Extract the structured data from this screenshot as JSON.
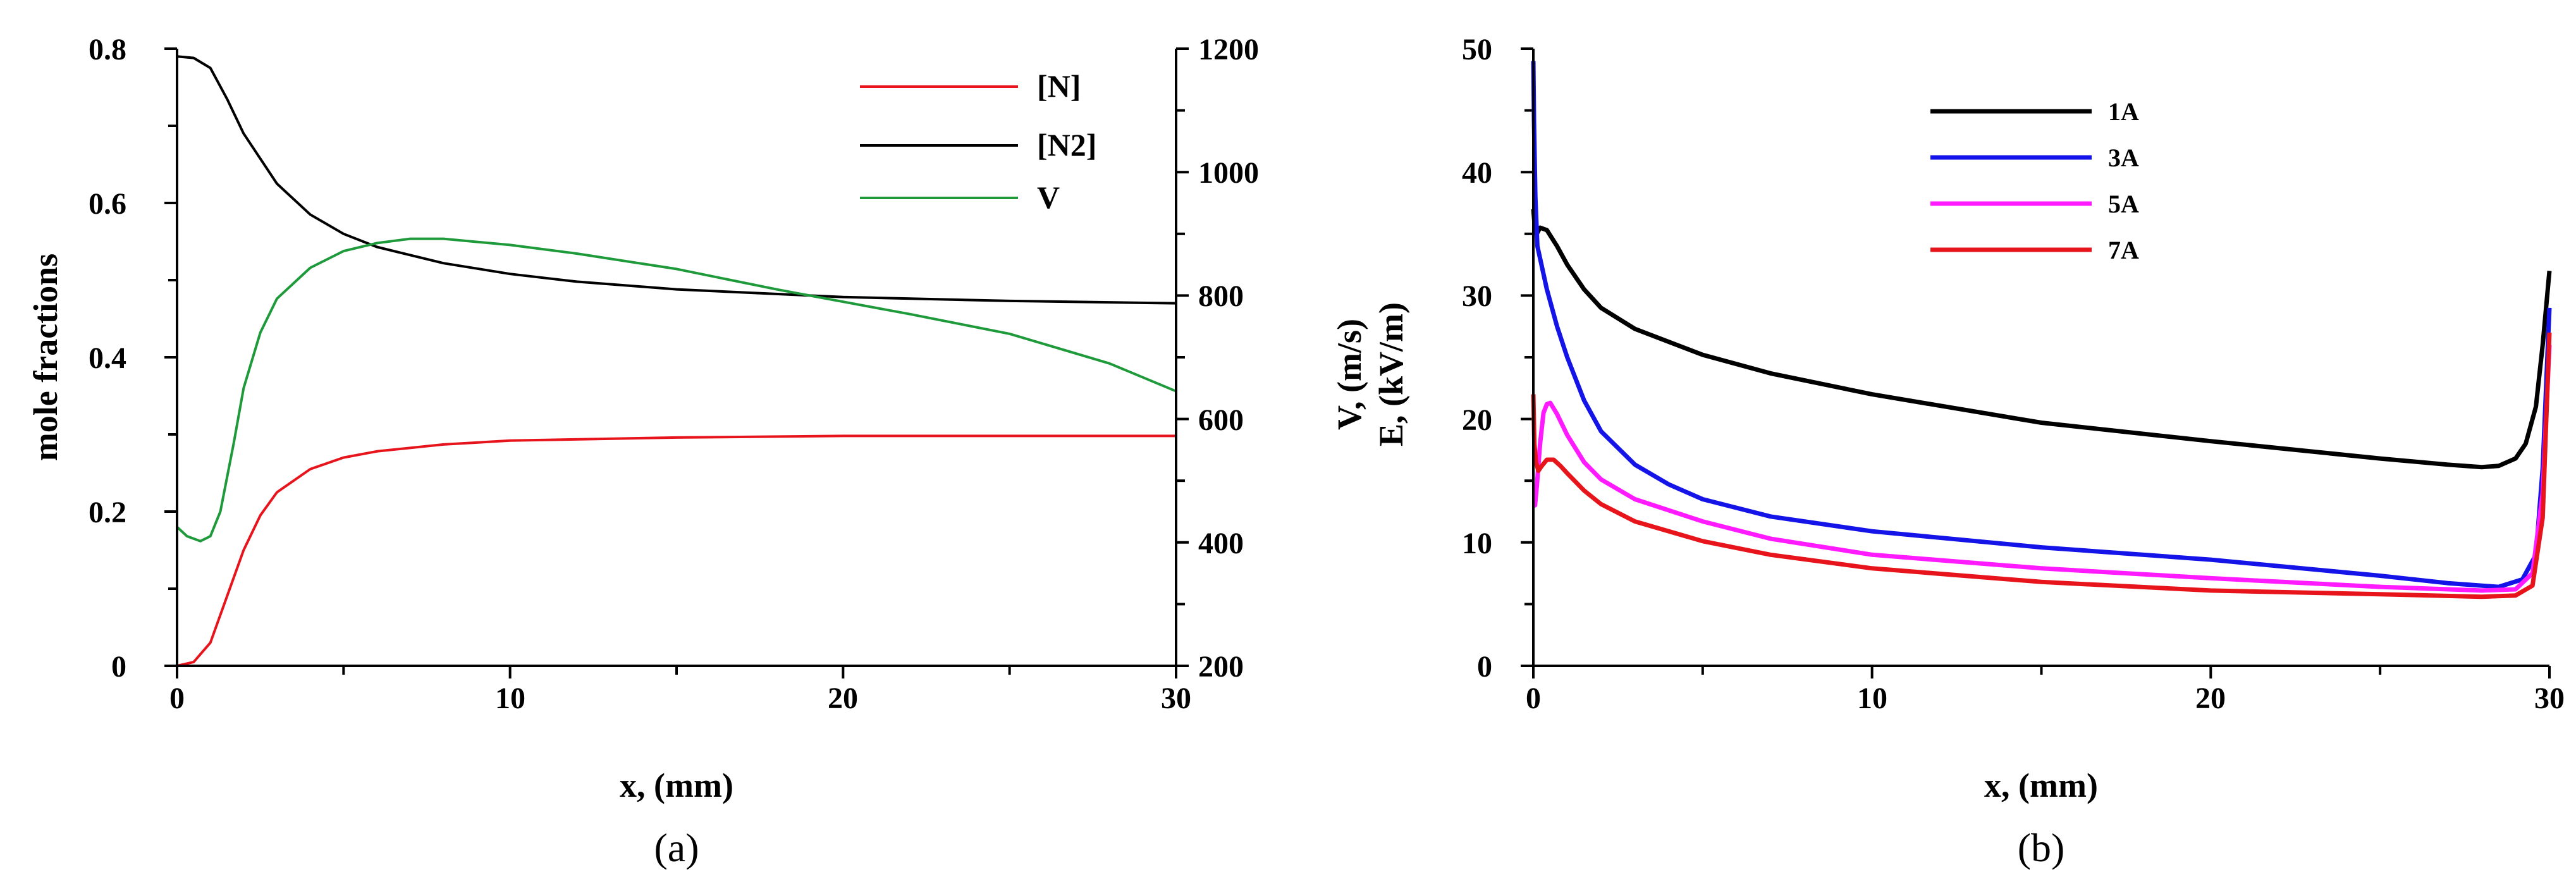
{
  "chart_data": [
    {
      "panel_label": "(a)",
      "type": "line",
      "xlabel": "x, (mm)",
      "ylabel": "mole fractions",
      "xlim": [
        0,
        30
      ],
      "ylim": [
        0,
        0.8
      ],
      "y2lim": [
        200,
        1200
      ],
      "x_ticks": [
        "0",
        "10",
        "20",
        "30"
      ],
      "y_ticks": [
        "0",
        "0.2",
        "0.4",
        "0.6",
        "0.8"
      ],
      "y2_ticks": [
        "200",
        "400",
        "600",
        "800",
        "1000",
        "1200"
      ],
      "legend_position": "top-right",
      "series": [
        {
          "name": "[N]",
          "axis": "left",
          "color": "#e8141c",
          "x": [
            0,
            0.5,
            1,
            1.5,
            2,
            2.5,
            3,
            4,
            5,
            6,
            8,
            10,
            15,
            20,
            25,
            30
          ],
          "y": [
            0,
            0.005,
            0.03,
            0.09,
            0.15,
            0.195,
            0.225,
            0.255,
            0.27,
            0.278,
            0.287,
            0.292,
            0.296,
            0.298,
            0.298,
            0.298
          ]
        },
        {
          "name": "[N2]",
          "axis": "left",
          "color": "#000000",
          "x": [
            0,
            0.5,
            1,
            1.5,
            2,
            3,
            4,
            5,
            6,
            8,
            10,
            12,
            15,
            20,
            25,
            30
          ],
          "y": [
            0.79,
            0.788,
            0.775,
            0.735,
            0.69,
            0.625,
            0.585,
            0.56,
            0.543,
            0.522,
            0.508,
            0.498,
            0.488,
            0.478,
            0.473,
            0.47
          ]
        },
        {
          "name": "V",
          "axis": "right",
          "color": "#1e9a3a",
          "x": [
            0,
            0.3,
            0.7,
            1,
            1.3,
            1.7,
            2,
            2.5,
            3,
            4,
            5,
            6,
            7,
            8,
            10,
            12,
            15,
            18,
            20,
            22,
            25,
            28,
            30
          ],
          "y": [
            425,
            410,
            402,
            410,
            450,
            560,
            650,
            740,
            795,
            845,
            872,
            885,
            892,
            892,
            882,
            868,
            843,
            810,
            790,
            770,
            738,
            690,
            645
          ]
        }
      ]
    },
    {
      "panel_label": "(b)",
      "type": "line",
      "xlabel": "x, (mm)",
      "ylabel_top": "V, (m/s)",
      "ylabel_bottom": "E, (kV/m)",
      "xlim": [
        0,
        30
      ],
      "ylim": [
        0,
        50
      ],
      "x_ticks": [
        "0",
        "10",
        "20",
        "30"
      ],
      "y_ticks": [
        "0",
        "10",
        "20",
        "30",
        "40",
        "50"
      ],
      "legend_position": "top-center",
      "series": [
        {
          "name": "1A",
          "color": "#000000",
          "x": [
            0,
            0.03,
            0.1,
            0.2,
            0.4,
            0.7,
            1,
            1.5,
            2,
            3,
            5,
            7,
            10,
            15,
            20,
            25,
            27,
            28,
            28.5,
            29,
            29.3,
            29.6,
            29.8,
            30
          ],
          "y": [
            37,
            36,
            35,
            35.5,
            35.3,
            34,
            32.5,
            30.5,
            29,
            27.3,
            25.2,
            23.7,
            22,
            19.7,
            18.2,
            16.8,
            16.3,
            16.1,
            16.2,
            16.8,
            18,
            21,
            26,
            32
          ]
        },
        {
          "name": "3A",
          "color": "#1414e8",
          "x": [
            0,
            0.02,
            0.06,
            0.12,
            0.2,
            0.4,
            0.7,
            1,
            1.5,
            2,
            3,
            4,
            5,
            7,
            10,
            15,
            20,
            25,
            27,
            28.5,
            29.2,
            29.6,
            29.8,
            30
          ],
          "y": [
            49,
            44,
            38,
            34,
            33,
            30.5,
            27.5,
            25,
            21.5,
            19,
            16.3,
            14.7,
            13.5,
            12.1,
            10.9,
            9.6,
            8.6,
            7.3,
            6.7,
            6.4,
            7,
            9,
            16,
            29
          ]
        },
        {
          "name": "5A",
          "color": "#ff1aff",
          "x": [
            0,
            0.05,
            0.1,
            0.2,
            0.3,
            0.4,
            0.5,
            0.7,
            1,
            1.5,
            2,
            3,
            5,
            7,
            10,
            15,
            20,
            25,
            28,
            29,
            29.5,
            29.8,
            30
          ],
          "y": [
            13,
            13,
            14.5,
            18,
            20.5,
            21.2,
            21.3,
            20.4,
            18.7,
            16.5,
            15.1,
            13.5,
            11.7,
            10.3,
            9,
            7.9,
            7.1,
            6.4,
            6.1,
            6.2,
            7.5,
            14,
            26
          ]
        },
        {
          "name": "7A",
          "color": "#e8141c",
          "x": [
            0,
            0.03,
            0.08,
            0.15,
            0.25,
            0.4,
            0.6,
            0.8,
            1,
            1.5,
            2,
            3,
            5,
            7,
            10,
            15,
            20,
            25,
            28,
            29,
            29.5,
            29.8,
            30
          ],
          "y": [
            22,
            18,
            16.5,
            15.8,
            16.2,
            16.7,
            16.7,
            16.2,
            15.6,
            14.2,
            13.1,
            11.7,
            10.1,
            9,
            7.9,
            6.8,
            6.1,
            5.8,
            5.6,
            5.7,
            6.5,
            12,
            27
          ]
        }
      ]
    }
  ]
}
